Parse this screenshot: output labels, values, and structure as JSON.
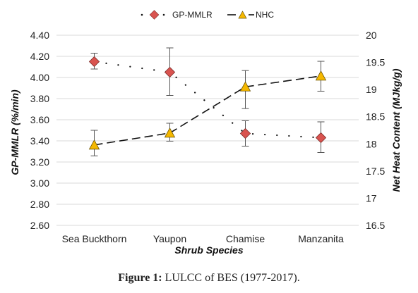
{
  "chart_data": {
    "type": "line",
    "categories": [
      "Sea Buckthorn",
      "Yaupon",
      "Chamise",
      "Manzanita"
    ],
    "xlabel": "Shrub Species",
    "ylabel_left": "GP-MMLR (%/min)",
    "ylabel_right": "Net Heat Content (MJkg/g)",
    "yleft": {
      "lim": [
        2.6,
        4.4
      ],
      "ticks": [
        "2.60",
        "2.80",
        "3.00",
        "3.20",
        "3.40",
        "3.60",
        "3.80",
        "4.00",
        "4.20",
        "4.40"
      ]
    },
    "yright": {
      "lim": [
        16.5,
        20
      ],
      "ticks": [
        "16.5",
        "17",
        "17.5",
        "18",
        "18.5",
        "19",
        "19.5",
        "20"
      ]
    },
    "legend_position": "top",
    "grid": "horizontal",
    "series": [
      {
        "name": "GP-MMLR",
        "axis": "left",
        "marker": "diamond",
        "line": "dotted",
        "color": "#d9534f",
        "values": [
          4.15,
          4.05,
          3.47,
          3.43
        ],
        "error_low": [
          4.08,
          3.83,
          3.35,
          3.29
        ],
        "error_high": [
          4.23,
          4.28,
          3.59,
          3.58
        ]
      },
      {
        "name": "NHC",
        "axis": "right",
        "marker": "triangle",
        "line": "dashed",
        "color": "#f5b800",
        "values": [
          17.98,
          18.2,
          19.05,
          19.25
        ],
        "error_low": [
          17.78,
          18.05,
          18.65,
          18.97
        ],
        "error_high": [
          18.25,
          18.38,
          19.35,
          19.52
        ]
      }
    ]
  },
  "caption": {
    "label": "Figure 1:",
    "text": "LULCC of BES (1977-2017)."
  }
}
